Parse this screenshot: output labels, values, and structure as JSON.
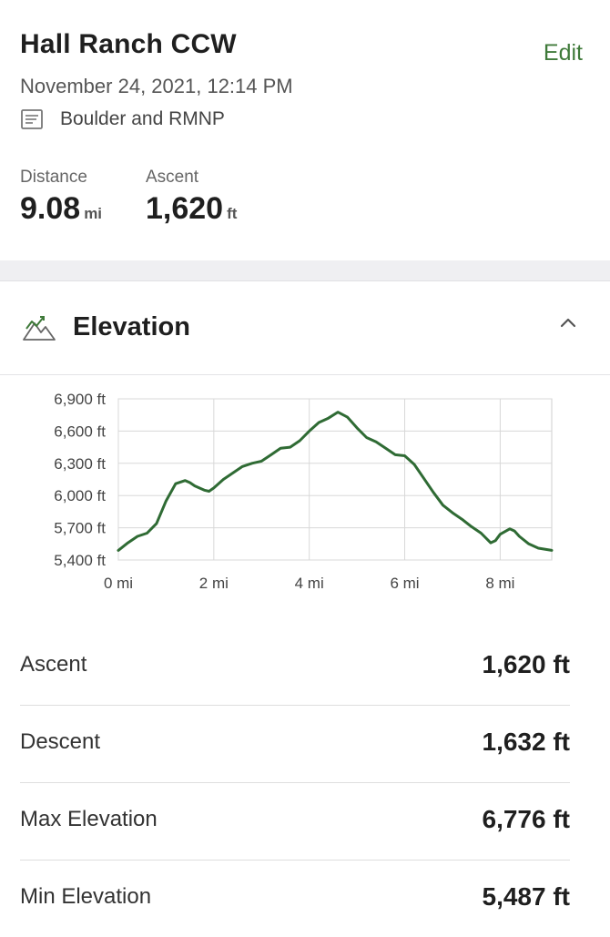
{
  "activity": {
    "title": "Hall Ranch CCW",
    "edit_label": "Edit",
    "date": "November 24, 2021, 12:14 PM",
    "collection": "Boulder and RMNP",
    "stats": [
      {
        "label": "Distance",
        "value": "9.08",
        "unit": "mi"
      },
      {
        "label": "Ascent",
        "value": "1,620",
        "unit": "ft"
      }
    ]
  },
  "elevation_section": {
    "title": "Elevation",
    "icon": "mountain-icon",
    "toggle_icon": "chevron-up-icon"
  },
  "chart_data": {
    "type": "line",
    "xlabel": "",
    "ylabel": "",
    "xlim": [
      0,
      9.08
    ],
    "ylim": [
      5400,
      6900
    ],
    "x_ticks": [
      0,
      2,
      4,
      6,
      8
    ],
    "x_tick_labels": [
      "0 mi",
      "2 mi",
      "4 mi",
      "6 mi",
      "8 mi"
    ],
    "y_ticks": [
      5400,
      5700,
      6000,
      6300,
      6600,
      6900
    ],
    "y_tick_labels": [
      "5,400 ft",
      "5,700 ft",
      "6,000 ft",
      "6,300 ft",
      "6,600 ft",
      "6,900 ft"
    ],
    "grid": true,
    "line_color": "#2f6b34",
    "series": [
      {
        "x": [
          0,
          0.2,
          0.4,
          0.6,
          0.8,
          1.0,
          1.2,
          1.4,
          1.5,
          1.6,
          1.8,
          1.9,
          2.0,
          2.2,
          2.4,
          2.6,
          2.8,
          3.0,
          3.2,
          3.4,
          3.6,
          3.8,
          4.0,
          4.2,
          4.4,
          4.6,
          4.8,
          5.0,
          5.2,
          5.4,
          5.6,
          5.8,
          6.0,
          6.2,
          6.4,
          6.6,
          6.8,
          7.0,
          7.2,
          7.4,
          7.6,
          7.8,
          7.9,
          8.0,
          8.2,
          8.3,
          8.4,
          8.6,
          8.8,
          9.08
        ],
        "y": [
          5490,
          5560,
          5620,
          5650,
          5740,
          5950,
          6110,
          6140,
          6120,
          6090,
          6050,
          6040,
          6070,
          6150,
          6210,
          6270,
          6300,
          6320,
          6380,
          6440,
          6450,
          6510,
          6600,
          6680,
          6720,
          6776,
          6730,
          6630,
          6540,
          6500,
          6440,
          6380,
          6370,
          6290,
          6160,
          6030,
          5910,
          5840,
          5780,
          5710,
          5650,
          5560,
          5580,
          5640,
          5690,
          5670,
          5620,
          5550,
          5510,
          5490
        ]
      }
    ]
  },
  "summary": {
    "rows": [
      {
        "label": "Ascent",
        "value": "1,620 ft"
      },
      {
        "label": "Descent",
        "value": "1,632 ft"
      },
      {
        "label": "Max Elevation",
        "value": "6,776 ft"
      },
      {
        "label": "Min Elevation",
        "value": "5,487 ft"
      }
    ]
  }
}
